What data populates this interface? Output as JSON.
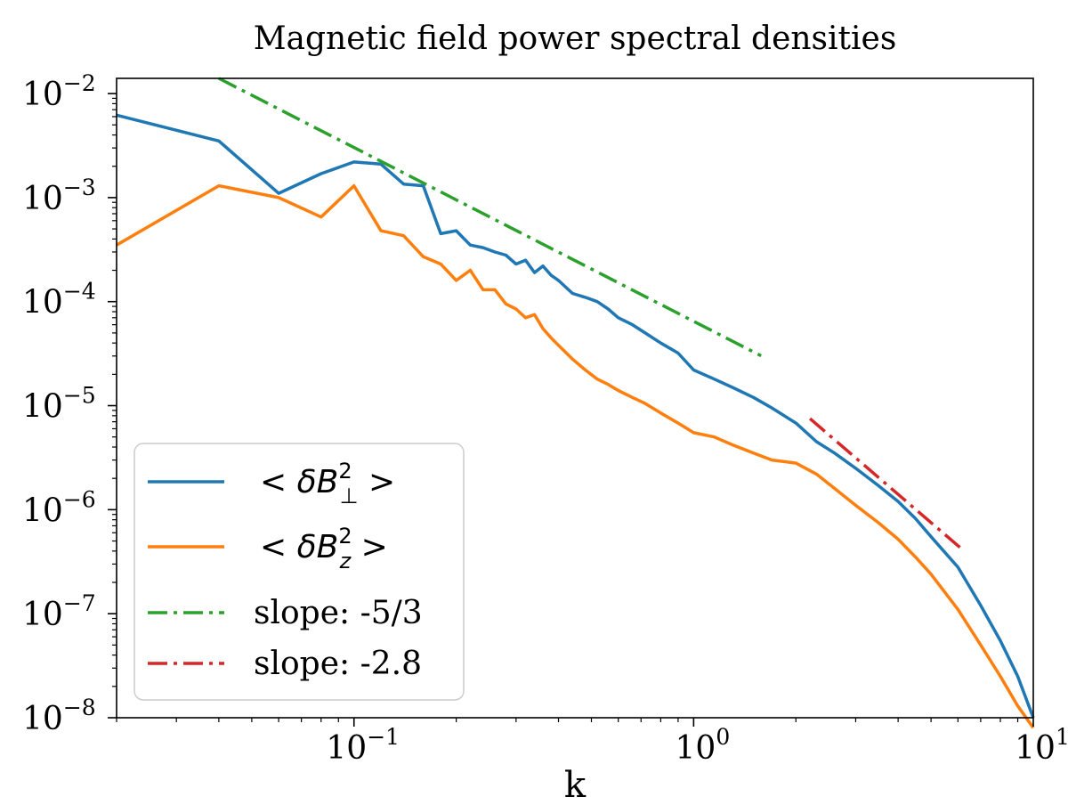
{
  "chart_data": {
    "type": "line",
    "title": "Magnetic field power spectral densities",
    "xlabel": "k",
    "ylabel": "",
    "xscale": "log",
    "yscale": "log",
    "xlim": [
      0.02,
      10
    ],
    "ylim": [
      1e-08,
      0.014
    ],
    "xticks": [
      {
        "value": 0.1,
        "base": "10",
        "exp": "−1"
      },
      {
        "value": 1,
        "base": "10",
        "exp": "0"
      },
      {
        "value": 10,
        "base": "10",
        "exp": "1"
      }
    ],
    "yticks": [
      {
        "value": 0.01,
        "base": "10",
        "exp": "−2"
      },
      {
        "value": 0.001,
        "base": "10",
        "exp": "−3"
      },
      {
        "value": 0.0001,
        "base": "10",
        "exp": "−4"
      },
      {
        "value": 1e-05,
        "base": "10",
        "exp": "−5"
      },
      {
        "value": 1e-06,
        "base": "10",
        "exp": "−6"
      },
      {
        "value": 1e-07,
        "base": "10",
        "exp": "−7"
      },
      {
        "value": 1e-08,
        "base": "10",
        "exp": "−8"
      }
    ],
    "grid": false,
    "legend_position": "lower-left",
    "series": [
      {
        "name": "δB⊥²",
        "legend_base": "< δB",
        "legend_sup": "2",
        "legend_sub": "⊥",
        "legend_tail": " >",
        "color": "#1f77b4",
        "style": "solid",
        "x": [
          0.02,
          0.04,
          0.06,
          0.08,
          0.1,
          0.12,
          0.14,
          0.16,
          0.18,
          0.2,
          0.22,
          0.24,
          0.26,
          0.28,
          0.3,
          0.32,
          0.34,
          0.36,
          0.38,
          0.4,
          0.44,
          0.48,
          0.52,
          0.56,
          0.6,
          0.66,
          0.72,
          0.8,
          0.9,
          1.0,
          1.15,
          1.3,
          1.5,
          1.7,
          2.0,
          2.3,
          2.6,
          3.0,
          3.5,
          4.0,
          4.5,
          5.0,
          6.0,
          7.0,
          8.0,
          9.0,
          10.0
        ],
        "y": [
          0.0062,
          0.0035,
          0.0011,
          0.0017,
          0.0022,
          0.0021,
          0.00135,
          0.0013,
          0.00045,
          0.00048,
          0.00035,
          0.00033,
          0.0003,
          0.00028,
          0.00023,
          0.00025,
          0.00019,
          0.00022,
          0.00018,
          0.00016,
          0.00012,
          0.00011,
          0.0001,
          8.5e-05,
          7e-05,
          6e-05,
          5e-05,
          4e-05,
          3.2e-05,
          2.2e-05,
          1.8e-05,
          1.5e-05,
          1.2e-05,
          9.5e-06,
          6.8e-06,
          4.5e-06,
          3.5e-06,
          2.5e-06,
          1.7e-06,
          1.2e-06,
          8.2e-07,
          5.5e-07,
          2.8e-07,
          1.2e-07,
          5.5e-08,
          2.5e-08,
          1e-08
        ]
      },
      {
        "name": "δBz²",
        "legend_base": "< δB",
        "legend_sup": "2",
        "legend_sub": "z",
        "legend_tail": " >",
        "color": "#ff7f0e",
        "style": "solid",
        "x": [
          0.02,
          0.04,
          0.06,
          0.08,
          0.1,
          0.12,
          0.14,
          0.16,
          0.18,
          0.2,
          0.22,
          0.24,
          0.26,
          0.28,
          0.3,
          0.32,
          0.34,
          0.36,
          0.38,
          0.4,
          0.44,
          0.48,
          0.52,
          0.56,
          0.6,
          0.66,
          0.72,
          0.8,
          0.9,
          1.0,
          1.15,
          1.3,
          1.5,
          1.7,
          2.0,
          2.3,
          2.6,
          3.0,
          3.5,
          4.0,
          4.5,
          5.0,
          6.0,
          7.0,
          8.0,
          9.0,
          10.0
        ],
        "y": [
          0.00035,
          0.0013,
          0.001,
          0.00065,
          0.0013,
          0.00048,
          0.00043,
          0.00027,
          0.00023,
          0.00016,
          0.0002,
          0.00013,
          0.00013,
          9.5e-05,
          8.5e-05,
          7e-05,
          7.5e-05,
          5.5e-05,
          4.5e-05,
          3.8e-05,
          2.8e-05,
          2.2e-05,
          1.8e-05,
          1.6e-05,
          1.4e-05,
          1.2e-05,
          1.05e-05,
          8.5e-06,
          6.8e-06,
          5.5e-06,
          5e-06,
          4.2e-06,
          3.5e-06,
          3e-06,
          2.8e-06,
          2.2e-06,
          1.6e-06,
          1.1e-06,
          7.5e-07,
          5.2e-07,
          3.5e-07,
          2.4e-07,
          1.1e-07,
          5e-08,
          2.5e-08,
          1.3e-08,
          8e-09
        ]
      },
      {
        "name": "slope: -5/3",
        "legend_label": "slope: -5/3",
        "color": "#2ca02c",
        "style": "dashdot",
        "x": [
          0.04,
          1.58
        ],
        "y": [
          0.014,
          3.01e-05
        ]
      },
      {
        "name": "slope: -2.8",
        "legend_label": "slope: -2.8",
        "color": "#d62728",
        "style": "dashdot",
        "x": [
          2.2,
          6.1
        ],
        "y": [
          7.5e-06,
          4.3e-07
        ]
      }
    ]
  }
}
